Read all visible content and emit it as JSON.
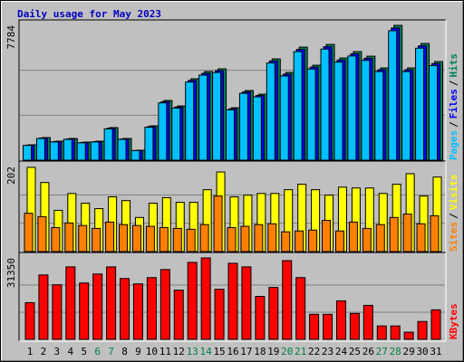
{
  "chart_data": {
    "type": "bar",
    "title": "Daily usage for May 2023",
    "title_color": "#0000c0",
    "categories": [
      "1",
      "2",
      "3",
      "4",
      "5",
      "6",
      "7",
      "8",
      "9",
      "10",
      "11",
      "12",
      "13",
      "14",
      "15",
      "16",
      "17",
      "18",
      "19",
      "20",
      "21",
      "22",
      "23",
      "24",
      "25",
      "26",
      "27",
      "28",
      "29",
      "30",
      "31"
    ],
    "highlight_indices": [
      5,
      6,
      12,
      13,
      19,
      20,
      26,
      27
    ],
    "highlight_color": "#008040",
    "grid": true,
    "panels": [
      {
        "ylim": [
          0,
          7784
        ],
        "yticks": [
          7784
        ],
        "legend_separator": "/",
        "series": [
          {
            "name": "Pages",
            "color": "#00c0ff",
            "values": [
              852,
              1254,
              1053,
              1203,
              1002,
              1053,
              1805,
              1203,
              551,
              1905,
              3308,
              3007,
              4512,
              4911,
              5061,
              2907,
              3859,
              3659,
              5613,
              4861,
              6265,
              5262,
              6415,
              5663,
              6014,
              5764,
              5112,
              7473,
              5112,
              6465,
              5462
            ]
          },
          {
            "name": "Files",
            "color": "#0000ff",
            "values": [
              870,
              1280,
              1075,
              1228,
              1023,
              1075,
              1842,
              1228,
              563,
              1944,
              3377,
              3069,
              4606,
              5014,
              5167,
              2967,
              3940,
              3735,
              5730,
              4963,
              6395,
              5371,
              6548,
              5781,
              6140,
              5884,
              5219,
              7628,
              5219,
              6599,
              5576
            ]
          },
          {
            "name": "Hits",
            "color": "#00805c",
            "values": [
              888,
              1306,
              1097,
              1253,
              1044,
              1097,
              1880,
              1253,
              574,
              1984,
              3446,
              3132,
              4700,
              5116,
              5272,
              3028,
              4020,
              3811,
              5847,
              5064,
              6526,
              5481,
              6682,
              5899,
              6265,
              6004,
              5325,
              7784,
              5325,
              6734,
              5690
            ]
          }
        ]
      },
      {
        "ylim": [
          0,
          202
        ],
        "yticks": [
          202
        ],
        "legend_separator": "/",
        "series": [
          {
            "name": "Sites",
            "color": "#ff8000",
            "values": [
              91,
              83,
              57,
              68,
              62,
              55,
              70,
              64,
              62,
              60,
              57,
              55,
              53,
              64,
              132,
              57,
              60,
              64,
              66,
              47,
              49,
              51,
              74,
              49,
              70,
              55,
              64,
              81,
              89,
              66,
              85
            ]
          },
          {
            "name": "Visits",
            "color": "#ffff00",
            "values": [
              200,
              164,
              98,
              138,
              115,
              102,
              130,
              121,
              81,
              115,
              128,
              117,
              117,
              147,
              189,
              130,
              134,
              138,
              138,
              147,
              160,
              147,
              134,
              153,
              151,
              151,
              138,
              160,
              185,
              132,
              177
            ]
          }
        ]
      },
      {
        "ylim": [
          0,
          31350
        ],
        "yticks": [
          31350
        ],
        "series": [
          {
            "name": "KBytes",
            "color": "#ff0000",
            "values": [
              14125,
              24804,
              21015,
              27905,
              21704,
              25149,
              27905,
              23426,
              21360,
              23771,
              26872,
              18947,
              29627,
              31350,
              19292,
              29283,
              27905,
              16536,
              19981,
              30316,
              23771,
              9646,
              9646,
              14814,
              9991,
              13091,
              5168,
              5168,
              2756,
              6890,
              11369
            ]
          }
        ]
      }
    ]
  }
}
